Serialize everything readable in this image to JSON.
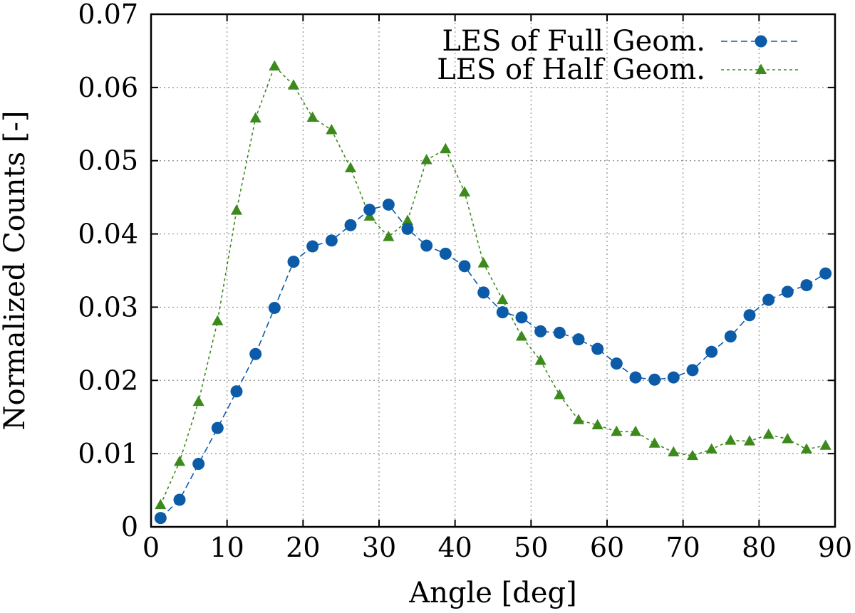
{
  "chart_data": {
    "type": "line",
    "xlabel": "Angle [deg]",
    "ylabel": "Normalized Counts [-]",
    "xlim": [
      0,
      90
    ],
    "ylim": [
      0,
      0.07
    ],
    "x_ticks": [
      "0",
      "10",
      "20",
      "30",
      "40",
      "50",
      "60",
      "70",
      "80",
      "90"
    ],
    "y_ticks": [
      "0",
      "0.01",
      "0.02",
      "0.03",
      "0.04",
      "0.05",
      "0.06",
      "0.07"
    ],
    "grid": true,
    "legend_position": "top-right",
    "series": [
      {
        "name": "LES of Full Geom.",
        "color": "#0b5ba8",
        "line_style": "dashed",
        "marker": "circle",
        "x": [
          1.25,
          3.75,
          6.25,
          8.75,
          11.25,
          13.75,
          16.25,
          18.75,
          21.25,
          23.75,
          26.25,
          28.75,
          31.25,
          33.75,
          36.25,
          38.75,
          41.25,
          43.75,
          46.25,
          48.75,
          51.25,
          53.75,
          56.25,
          58.75,
          61.25,
          63.75,
          66.25,
          68.75,
          71.25,
          73.75,
          76.25,
          78.75,
          81.25,
          83.75,
          86.25,
          88.75
        ],
        "y": [
          0.0012,
          0.0037,
          0.0086,
          0.0135,
          0.0185,
          0.0236,
          0.0299,
          0.0362,
          0.0383,
          0.0391,
          0.0412,
          0.0433,
          0.044,
          0.0407,
          0.0384,
          0.0373,
          0.0356,
          0.032,
          0.0293,
          0.0286,
          0.0267,
          0.0265,
          0.0256,
          0.0243,
          0.0223,
          0.0204,
          0.0201,
          0.0204,
          0.0214,
          0.0239,
          0.026,
          0.0289,
          0.031,
          0.0321,
          0.033,
          0.0346
        ]
      },
      {
        "name": "LES of Half Geom.",
        "color": "#3c8a1c",
        "line_style": "dotted",
        "marker": "triangle",
        "x": [
          1.25,
          3.75,
          6.25,
          8.75,
          11.25,
          13.75,
          16.25,
          18.75,
          21.25,
          23.75,
          26.25,
          28.75,
          31.25,
          33.75,
          36.25,
          38.75,
          41.25,
          43.75,
          46.25,
          48.75,
          51.25,
          53.75,
          56.25,
          58.75,
          61.25,
          63.75,
          66.25,
          68.75,
          71.25,
          73.75,
          76.25,
          78.75,
          81.25,
          83.75,
          86.25,
          88.75
        ],
        "y": [
          0.003,
          0.0089,
          0.0171,
          0.0281,
          0.0432,
          0.0558,
          0.0629,
          0.0603,
          0.0559,
          0.0542,
          0.049,
          0.0424,
          0.0396,
          0.0418,
          0.0501,
          0.0516,
          0.0457,
          0.036,
          0.031,
          0.026,
          0.0227,
          0.018,
          0.0146,
          0.0139,
          0.013,
          0.013,
          0.0114,
          0.0102,
          0.0097,
          0.0106,
          0.0118,
          0.0117,
          0.0126,
          0.012,
          0.0106,
          0.0111
        ]
      }
    ]
  }
}
